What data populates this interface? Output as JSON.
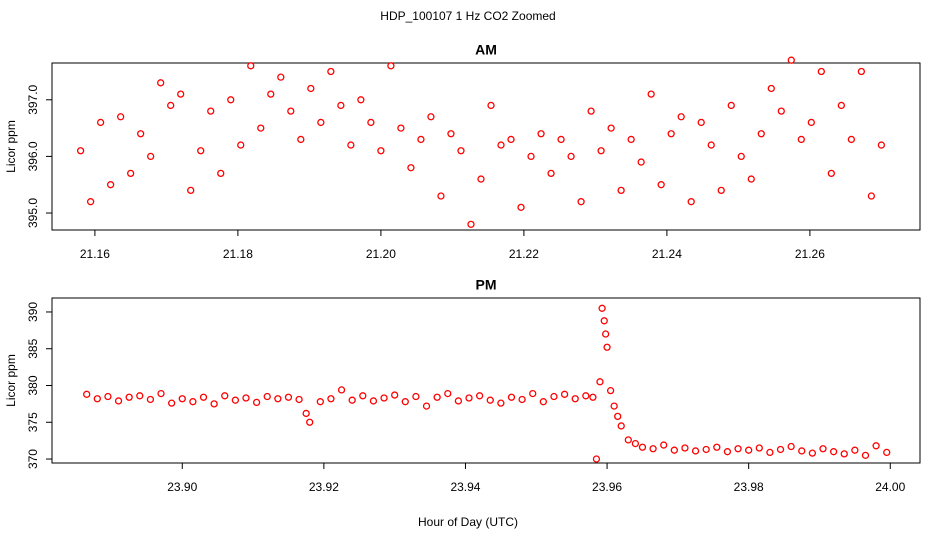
{
  "title": "HDP_100107  1 Hz CO2 Zoomed",
  "xlabel": "Hour of Day (UTC)",
  "chart_data": [
    {
      "type": "scatter",
      "title": "AM",
      "ylabel": "Licor ppm",
      "color": "#ff0000",
      "x": [
        21.158,
        21.1594,
        21.1608,
        21.1622,
        21.1636,
        21.165,
        21.1664,
        21.1678,
        21.1692,
        21.1706,
        21.172,
        21.1734,
        21.1748,
        21.1762,
        21.1776,
        21.179,
        21.1804,
        21.1818,
        21.1832,
        21.1846,
        21.186,
        21.1874,
        21.1888,
        21.1902,
        21.1916,
        21.193,
        21.1944,
        21.1958,
        21.1972,
        21.1986,
        21.2,
        21.2014,
        21.2028,
        21.2042,
        21.2056,
        21.207,
        21.2084,
        21.2098,
        21.2112,
        21.2126,
        21.214,
        21.2154,
        21.2168,
        21.2182,
        21.2196,
        21.221,
        21.2224,
        21.2238,
        21.2252,
        21.2266,
        21.228,
        21.2294,
        21.2308,
        21.2322,
        21.2336,
        21.235,
        21.2364,
        21.2378,
        21.2392,
        21.2406,
        21.242,
        21.2434,
        21.2448,
        21.2462,
        21.2476,
        21.249,
        21.2504,
        21.2518,
        21.2532,
        21.2546,
        21.256,
        21.2574,
        21.2588,
        21.2602,
        21.2616,
        21.263,
        21.2644,
        21.2658,
        21.2672,
        21.2686,
        21.27
      ],
      "values": [
        396.1,
        395.2,
        396.6,
        395.5,
        396.7,
        395.7,
        396.4,
        396.0,
        397.3,
        396.9,
        397.1,
        395.4,
        396.1,
        396.8,
        395.7,
        397.0,
        396.2,
        397.6,
        396.5,
        397.1,
        397.4,
        396.8,
        396.3,
        397.2,
        396.6,
        397.5,
        396.9,
        396.2,
        397.0,
        396.6,
        396.1,
        397.6,
        396.5,
        395.8,
        396.3,
        396.7,
        395.3,
        396.4,
        396.1,
        394.8,
        395.6,
        396.9,
        396.2,
        396.3,
        395.1,
        396.0,
        396.4,
        395.7,
        396.3,
        396.0,
        395.2,
        396.8,
        396.1,
        396.5,
        395.4,
        396.3,
        395.9,
        397.1,
        395.5,
        396.4,
        396.7,
        395.2,
        396.6,
        396.2,
        395.4,
        396.9,
        396.0,
        395.6,
        396.4,
        397.2,
        396.8,
        397.7,
        396.3,
        396.6,
        397.5,
        395.7,
        396.9,
        396.3,
        397.5,
        395.3,
        396.2
      ],
      "xlim": [
        21.154,
        21.2754
      ],
      "xticks": [
        21.16,
        21.18,
        {
          "value": 21.2,
          "label": "21.20"
        },
        21.22,
        21.24,
        21.26
      ],
      "ylim": [
        394.7,
        397.65
      ],
      "yticks": [
        {
          "value": 395,
          "label": "395.0"
        },
        {
          "value": 396,
          "label": "396.0"
        },
        {
          "value": 397,
          "label": "397.0"
        }
      ]
    },
    {
      "type": "scatter",
      "title": "PM",
      "ylabel": "Licor ppm",
      "color": "#ff0000",
      "x": [
        23.8865,
        23.888,
        23.8895,
        23.891,
        23.8925,
        23.894,
        23.8955,
        23.897,
        23.8985,
        23.9,
        23.9015,
        23.903,
        23.9045,
        23.906,
        23.9075,
        23.909,
        23.9105,
        23.912,
        23.9135,
        23.915,
        23.9165,
        23.9175,
        23.918,
        23.9195,
        23.921,
        23.9225,
        23.924,
        23.9255,
        23.927,
        23.9285,
        23.93,
        23.9315,
        23.933,
        23.9345,
        23.936,
        23.9375,
        23.939,
        23.9405,
        23.942,
        23.9435,
        23.945,
        23.9465,
        23.948,
        23.9495,
        23.951,
        23.9525,
        23.954,
        23.9555,
        23.957,
        23.958,
        23.9585,
        23.959,
        23.9593,
        23.9596,
        23.9598,
        23.96,
        23.9605,
        23.961,
        23.9615,
        23.962,
        23.963,
        23.964,
        23.965,
        23.9665,
        23.968,
        23.9695,
        23.971,
        23.9725,
        23.974,
        23.9755,
        23.977,
        23.9785,
        23.98,
        23.9815,
        23.983,
        23.9845,
        23.986,
        23.9875,
        23.989,
        23.9905,
        23.992,
        23.9935,
        23.995,
        23.9965,
        23.998,
        23.9995
      ],
      "values": [
        378.8,
        378.2,
        378.5,
        377.9,
        378.4,
        378.6,
        378.1,
        378.9,
        377.6,
        378.2,
        377.8,
        378.4,
        377.5,
        378.6,
        378.0,
        378.3,
        377.7,
        378.5,
        378.2,
        378.4,
        378.1,
        376.2,
        375.0,
        377.8,
        378.2,
        379.4,
        378.0,
        378.6,
        377.9,
        378.3,
        378.7,
        377.8,
        378.5,
        377.2,
        378.4,
        378.9,
        377.9,
        378.3,
        378.6,
        378.0,
        377.6,
        378.4,
        378.1,
        378.9,
        377.8,
        378.5,
        378.8,
        378.2,
        378.6,
        378.4,
        370.0,
        380.5,
        390.5,
        388.8,
        387.0,
        385.2,
        379.3,
        377.2,
        375.8,
        374.5,
        372.6,
        372.1,
        371.6,
        371.4,
        371.9,
        371.2,
        371.5,
        371.1,
        371.3,
        371.6,
        371.0,
        371.4,
        371.2,
        371.5,
        370.9,
        371.3,
        371.7,
        371.1,
        370.8,
        371.4,
        371.0,
        370.7,
        371.2,
        370.5,
        371.8,
        370.9
      ],
      "xlim": [
        23.8816,
        24.0042
      ],
      "xticks": [
        {
          "value": 23.9,
          "label": "23.90"
        },
        23.92,
        23.94,
        23.96,
        23.98,
        {
          "value": 24,
          "label": "24.00"
        }
      ],
      "ylim": [
        369.46,
        391.9
      ],
      "yticks": [
        370,
        375,
        380,
        385,
        390
      ]
    }
  ]
}
